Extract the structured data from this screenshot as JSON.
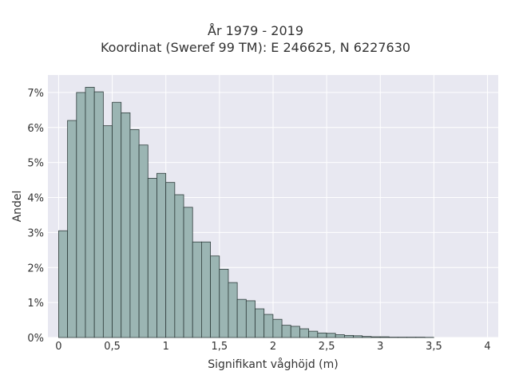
{
  "chart_data": {
    "type": "bar",
    "title": "År 1979 - 2019",
    "subtitle": "Koordinat (Sweref 99 TM): E 246625, N 6227630",
    "xlabel": "Signifikant våghöjd (m)",
    "ylabel": "Andel",
    "bin_width": 0.0833,
    "x_start": 0,
    "values": [
      0.0305,
      0.062,
      0.07,
      0.0715,
      0.0702,
      0.0605,
      0.0672,
      0.0642,
      0.0594,
      0.055,
      0.0455,
      0.0469,
      0.0443,
      0.0408,
      0.0372,
      0.0273,
      0.0273,
      0.0233,
      0.0195,
      0.0157,
      0.0109,
      0.0105,
      0.0082,
      0.0066,
      0.0052,
      0.0035,
      0.0032,
      0.0025,
      0.0018,
      0.0013,
      0.0012,
      0.0008,
      0.0006,
      0.0005,
      0.0003,
      0.0002,
      0.0002,
      0.0001,
      0.0001,
      0.0001,
      0.0001,
      5e-05
    ],
    "xlim": [
      -0.1,
      4.1
    ],
    "ylim": [
      0,
      0.075
    ],
    "x_ticks": [
      0,
      0.5,
      1,
      1.5,
      2,
      2.5,
      3,
      3.5,
      4
    ],
    "x_tick_labels": [
      "0",
      "0,5",
      "1",
      "1,5",
      "2",
      "2,5",
      "3",
      "3,5",
      "4"
    ],
    "y_ticks": [
      0,
      0.01,
      0.02,
      0.03,
      0.04,
      0.05,
      0.06,
      0.07
    ],
    "y_tick_labels": [
      "0%",
      "1%",
      "2%",
      "3%",
      "4%",
      "5%",
      "6%",
      "7%"
    ],
    "grid": true,
    "colors": {
      "bar_fill": "#9bb5b3",
      "bar_stroke": "#2f3d3c",
      "plot_bg": "#e8e8f1",
      "grid": "#ffffff"
    }
  }
}
